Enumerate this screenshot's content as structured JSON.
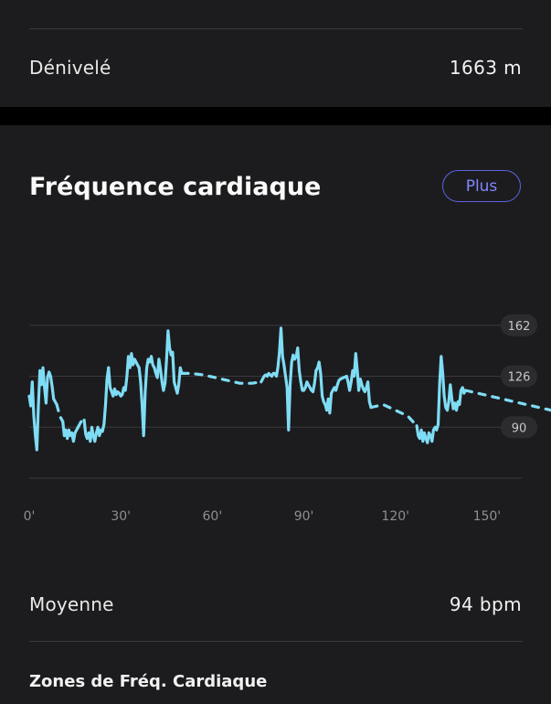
{
  "elevation": {
    "label": "Dénivelé",
    "value": "1663 m"
  },
  "heart_rate": {
    "title": "Fréquence cardiaque",
    "more_label": "Plus",
    "average_label": "Moyenne",
    "average_value": "94 bpm",
    "zones_title": "Zones de Fréq. Cardiaque"
  },
  "colors": {
    "line": "#7fdcf5",
    "accent": "#5b63e0",
    "background": "#1c1c1e"
  },
  "chart_data": {
    "type": "line",
    "title": "",
    "xlabel": "",
    "ylabel": "",
    "x_tick_labels": [
      "0'",
      "30'",
      "60'",
      "90'",
      "120'",
      "150'"
    ],
    "x_ticks": [
      0,
      30,
      60,
      90,
      120,
      150
    ],
    "y_tick_labels": [
      "162",
      "126",
      "90"
    ],
    "y_ticks": [
      162,
      126,
      90
    ],
    "ylim": [
      54,
      198
    ],
    "xlim": [
      0,
      171
    ],
    "grid": true,
    "series": [
      {
        "style": "solid",
        "x": [
          0,
          0.5,
          1,
          1.5,
          2,
          2.5,
          3,
          3.5,
          4,
          4.5,
          5,
          5.5,
          6,
          6.5,
          7,
          7.5,
          8,
          8.5,
          9
        ],
        "y": [
          112,
          105,
          122,
          98,
          84,
          74,
          105,
          130,
          120,
          132,
          118,
          107,
          125,
          129,
          126,
          119,
          110,
          108,
          106
        ]
      },
      {
        "style": "dashed",
        "x": [
          9,
          10,
          11
        ],
        "y": [
          106,
          98,
          94
        ]
      },
      {
        "style": "solid",
        "x": [
          11,
          11.5,
          12,
          12.5,
          13,
          13.5,
          14,
          14.5,
          15,
          15.5,
          16
        ],
        "y": [
          94,
          84,
          88,
          82,
          88,
          84,
          86,
          80,
          86,
          88,
          90
        ]
      },
      {
        "style": "dashed",
        "x": [
          16,
          17,
          18
        ],
        "y": [
          90,
          94,
          95
        ]
      },
      {
        "style": "solid",
        "x": [
          18,
          18.5,
          19,
          19.5,
          20,
          20.5,
          21,
          21.5,
          22,
          22.5,
          23,
          23.5,
          24,
          24.5,
          25,
          25.5,
          26
        ],
        "y": [
          95,
          85,
          82,
          86,
          80,
          90,
          84,
          80,
          86,
          90,
          84,
          88,
          87,
          92,
          106,
          124,
          132
        ]
      },
      {
        "style": "solid",
        "x": [
          26,
          26.5,
          27,
          27.5,
          28,
          28.5,
          29,
          29.5,
          30,
          30.5,
          31,
          31.5,
          32,
          32.5,
          33,
          33.5,
          34,
          34.5,
          35,
          35.5,
          36,
          36.5,
          37,
          37.5,
          38,
          38.5,
          39,
          39.5,
          40,
          40.5,
          41,
          41.5,
          42,
          42.5,
          43,
          43.5,
          44,
          44.5,
          45,
          45.5,
          46,
          46.5,
          47,
          47.5,
          48,
          48.5,
          49,
          49.5,
          50
        ],
        "y": [
          132,
          118,
          115,
          112,
          117,
          113,
          115,
          114,
          112,
          113,
          118,
          116,
          126,
          140,
          132,
          142,
          134,
          138,
          136,
          134,
          132,
          122,
          106,
          84,
          115,
          132,
          138,
          136,
          140,
          134,
          132,
          128,
          125,
          138,
          131,
          122,
          116,
          121,
          138,
          158,
          146,
          141,
          143,
          122,
          118,
          114,
          120,
          132,
          128
        ]
      },
      {
        "style": "dashed",
        "x": [
          50,
          53,
          57,
          61,
          65,
          69,
          73,
          76
        ],
        "y": [
          128,
          128,
          127,
          125,
          123,
          121,
          121,
          122
        ]
      },
      {
        "style": "solid",
        "x": [
          76,
          76.5,
          77,
          77.5,
          78,
          78.5,
          79,
          79.5,
          80,
          80.5,
          81,
          81.5,
          82,
          82.5,
          83,
          83.5,
          84,
          84.5,
          85,
          85.5,
          86,
          86.5,
          87,
          87.5,
          88,
          88.5,
          89,
          89.5,
          90,
          90.5,
          91,
          91.5,
          92,
          92.5,
          93,
          93.5,
          94
        ],
        "y": [
          122,
          124,
          126,
          127,
          126,
          128,
          127,
          126,
          128,
          128,
          126,
          132,
          143,
          160,
          140,
          134,
          126,
          118,
          88,
          120,
          136,
          141,
          138,
          140,
          146,
          130,
          122,
          116,
          116,
          118,
          122,
          120,
          118,
          116,
          115,
          121,
          130
        ]
      },
      {
        "style": "solid",
        "x": [
          94,
          94.5,
          95,
          95.5,
          96,
          96.5,
          97,
          97.5,
          98,
          98.5,
          99,
          99.5,
          100,
          100.5,
          101,
          101.5,
          102
        ],
        "y": [
          130,
          132,
          136,
          128,
          112,
          108,
          106,
          102,
          110,
          100,
          114,
          116,
          118,
          116,
          120,
          123,
          124
        ]
      },
      {
        "style": "dashed",
        "x": [
          102,
          103,
          104
        ],
        "y": [
          124,
          125,
          126
        ]
      },
      {
        "style": "solid",
        "x": [
          104,
          104.5,
          105,
          105.5,
          106,
          106.5,
          107,
          107.5,
          108,
          108.5,
          109,
          109.5,
          110,
          110.5,
          111,
          111.5,
          112
        ],
        "y": [
          126,
          122,
          116,
          122,
          130,
          126,
          142,
          130,
          116,
          124,
          120,
          117,
          115,
          118,
          122,
          108,
          104
        ]
      },
      {
        "style": "dashed",
        "x": [
          112,
          116,
          120,
          124,
          127
        ],
        "y": [
          104,
          106,
          102,
          98,
          91
        ]
      },
      {
        "style": "solid",
        "x": [
          127,
          127.5,
          128,
          128.5,
          129,
          129.5,
          130,
          130.5,
          131,
          131.5,
          132,
          132.5,
          133,
          133.5,
          134
        ],
        "y": [
          91,
          84,
          82,
          88,
          80,
          86,
          82,
          79,
          86,
          84,
          80,
          88,
          90,
          88,
          92
        ]
      },
      {
        "style": "solid",
        "x": [
          134,
          134.5,
          135,
          135.5,
          136,
          136.5,
          137,
          137.5,
          138,
          138.5,
          139,
          139.5,
          140,
          140.5,
          141,
          141.5,
          142,
          142.5,
          143
        ],
        "y": [
          92,
          120,
          140,
          128,
          112,
          104,
          102,
          108,
          120,
          110,
          103,
          107,
          102,
          108,
          106,
          116,
          118,
          114,
          116
        ]
      },
      {
        "style": "dashed",
        "x": [
          143,
          147,
          151,
          155,
          159,
          163,
          167,
          171
        ],
        "y": [
          116,
          114,
          112,
          110,
          108,
          106,
          104,
          102
        ]
      }
    ]
  }
}
